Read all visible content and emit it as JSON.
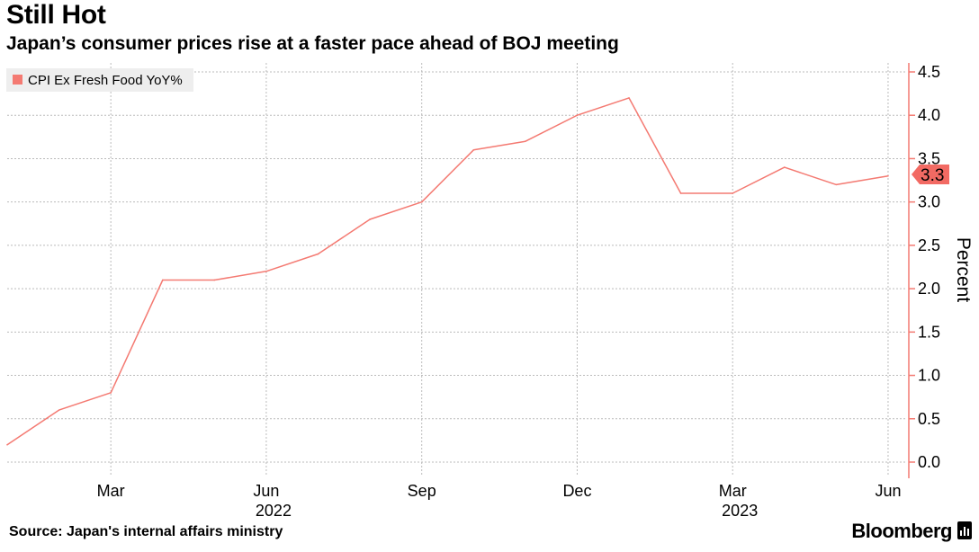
{
  "header": {
    "title": "Still Hot",
    "subtitle": "Japan’s consumer prices rise at a faster pace ahead of BOJ meeting"
  },
  "footer": {
    "source": "Source: Japan's internal affairs ministry",
    "brand": "Bloomberg"
  },
  "colors": {
    "series": "#f47a72",
    "axis": "#f47a72",
    "label_box": "#f26a63",
    "legend_bg": "#eeeeee",
    "grid": "#bbbbbb"
  },
  "chart_data": {
    "type": "line",
    "title": "Still Hot",
    "subtitle": "Japan’s consumer prices rise at a faster pace ahead of BOJ meeting",
    "ylabel": "Percent",
    "xlabel": "",
    "ylim": [
      0,
      4.5
    ],
    "yticks": [
      0.0,
      0.5,
      1.0,
      1.5,
      2.0,
      2.5,
      3.0,
      3.5,
      4.0,
      4.5
    ],
    "ytick_labels": [
      "0.0",
      "0.5",
      "1.0",
      "1.5",
      "2.0",
      "2.5",
      "3.0",
      "3.5",
      "4.0",
      "4.5"
    ],
    "xticks": [
      {
        "date": "2022-03",
        "label": "Mar"
      },
      {
        "date": "2022-06",
        "label": "Jun"
      },
      {
        "date": "2022-09",
        "label": "Sep"
      },
      {
        "date": "2022-12",
        "label": "Dec"
      },
      {
        "date": "2023-03",
        "label": "Mar"
      },
      {
        "date": "2023-06",
        "label": "Jun"
      }
    ],
    "year_labels": [
      {
        "date": "2022-06",
        "label": "2022"
      },
      {
        "date": "2023-03",
        "label": "2023"
      }
    ],
    "grid": true,
    "legend": {
      "position": "top-left",
      "label": "CPI Ex Fresh Food YoY%"
    },
    "last_value_label": "3.3",
    "series": [
      {
        "name": "CPI Ex Fresh Food YoY%",
        "x": [
          "2022-01",
          "2022-02",
          "2022-03",
          "2022-04",
          "2022-05",
          "2022-06",
          "2022-07",
          "2022-08",
          "2022-09",
          "2022-10",
          "2022-11",
          "2022-12",
          "2023-01",
          "2023-02",
          "2023-03",
          "2023-04",
          "2023-05",
          "2023-06"
        ],
        "values": [
          0.2,
          0.6,
          0.8,
          2.1,
          2.1,
          2.2,
          2.4,
          2.8,
          3.0,
          3.6,
          3.7,
          4.0,
          4.2,
          3.1,
          3.1,
          3.4,
          3.2,
          3.3
        ]
      }
    ]
  }
}
